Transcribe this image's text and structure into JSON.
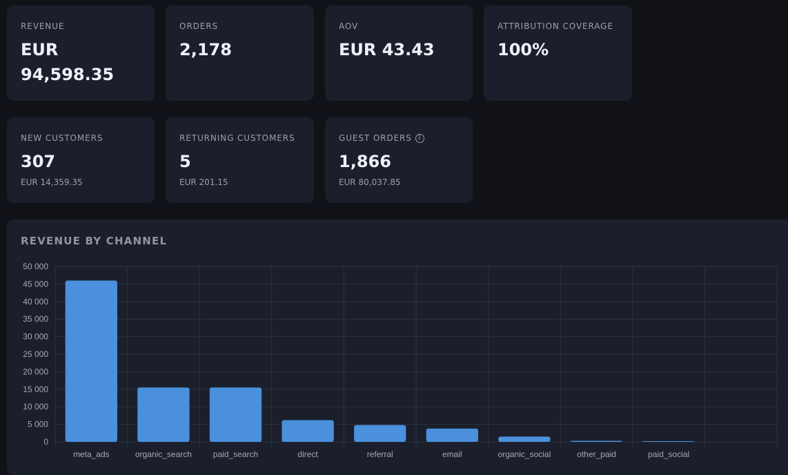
{
  "kpis_row1": [
    {
      "label": "REVENUE",
      "value": "EUR 94,598.35"
    },
    {
      "label": "ORDERS",
      "value": "2,178"
    },
    {
      "label": "AOV",
      "value": "EUR 43.43"
    },
    {
      "label": "ATTRIBUTION COVERAGE",
      "value": "100%"
    }
  ],
  "kpis_row2": [
    {
      "label": "NEW CUSTOMERS",
      "value": "307",
      "sub": "EUR 14,359.35"
    },
    {
      "label": "RETURNING CUSTOMERS",
      "value": "5",
      "sub": "EUR 201.15"
    },
    {
      "label": "GUEST ORDERS",
      "value": "1,866",
      "sub": "EUR 80,037.85",
      "info_icon": "info-icon"
    }
  ],
  "revenue_panel": {
    "title": "REVENUE BY CHANNEL"
  },
  "colors": {
    "bar": "#4a90dc",
    "panel": "#1b1f2b",
    "background": "#111217",
    "grid": "#2e3342"
  },
  "chart_data": {
    "type": "bar",
    "title": "",
    "categories": [
      "meta_ads",
      "organic_search",
      "paid_search",
      "direct",
      "referral",
      "email",
      "organic_social",
      "other_paid",
      "paid_social"
    ],
    "values": [
      46000,
      15500,
      15500,
      6200,
      4800,
      3800,
      1500,
      300,
      200
    ],
    "ylim": [
      0,
      50000
    ],
    "yticks": [
      0,
      5000,
      10000,
      15000,
      20000,
      25000,
      30000,
      35000,
      40000,
      45000,
      50000
    ],
    "ytick_labels": [
      "0",
      "5 000",
      "10 000",
      "15 000",
      "20 000",
      "25 000",
      "30 000",
      "35 000",
      "40 000",
      "45 000",
      "50 000"
    ],
    "grid": true,
    "xlabel": "",
    "ylabel": ""
  }
}
